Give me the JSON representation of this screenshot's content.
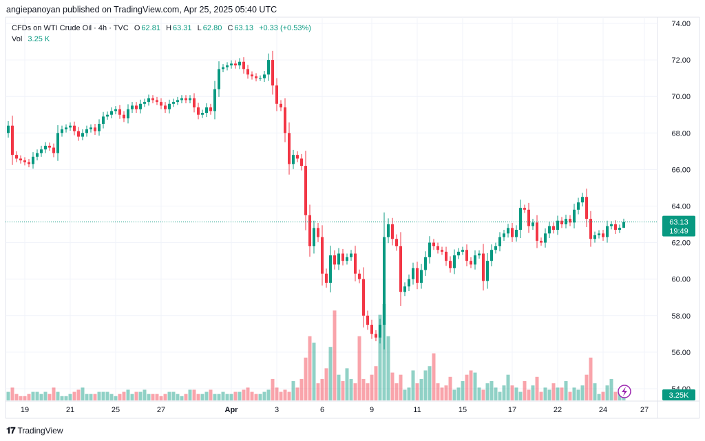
{
  "publisher_line": "angiepanoyan published on TradingView.com, Apr 25, 2025 05:40 UTC",
  "legend": {
    "symbol": "CFDs on WTI Crude Oil · 4h · TVC",
    "open_label": "O",
    "open": "62.81",
    "high_label": "H",
    "high": "63.31",
    "low_label": "L",
    "low": "62.80",
    "close_label": "C",
    "close": "63.13",
    "change": "+0.33 (+0.53%)",
    "vol_label": "Vol",
    "vol": "3.25 K"
  },
  "price_tag": {
    "price": "63.13",
    "countdown": "19:49"
  },
  "volume_tag": "3.25K",
  "logo_text": "TradingView",
  "colors": {
    "up": "#089981",
    "down": "#f23645",
    "grid": "#f0f3fa",
    "tag": "#089981",
    "lightning": "#9c27b0"
  },
  "chart_data": {
    "type": "candlestick",
    "title": "CFDs on WTI Crude Oil · 4h · TVC",
    "ylim": [
      54,
      74
    ],
    "y_ticks": [
      "74.00",
      "72.00",
      "70.00",
      "68.00",
      "66.00",
      "64.00",
      "62.00",
      "60.00",
      "58.00",
      "56.00",
      "54.00"
    ],
    "x_ticks": [
      {
        "label": "19",
        "index": 4
      },
      {
        "label": "21",
        "index": 15
      },
      {
        "label": "25",
        "index": 26
      },
      {
        "label": "27",
        "index": 37
      },
      {
        "label": "Apr",
        "index": 54,
        "bold": true
      },
      {
        "label": "3",
        "index": 65
      },
      {
        "label": "6",
        "index": 76
      },
      {
        "label": "9",
        "index": 88
      },
      {
        "label": "11",
        "index": 99
      },
      {
        "label": "15",
        "index": 110
      },
      {
        "label": "17",
        "index": 122
      },
      {
        "label": "22",
        "index": 133
      },
      {
        "label": "24",
        "index": 144
      },
      {
        "label": "27",
        "index": 154
      }
    ],
    "closes": [
      68.4,
      66.8,
      66.6,
      66.5,
      66.4,
      66.3,
      66.7,
      66.9,
      67.1,
      67.3,
      67.2,
      66.9,
      68.0,
      68.2,
      68.3,
      68.4,
      68.1,
      67.8,
      68.0,
      68.2,
      68.3,
      68.1,
      68.5,
      68.9,
      69.0,
      69.2,
      69.3,
      69.0,
      68.8,
      69.3,
      69.5,
      69.3,
      69.6,
      69.7,
      69.9,
      69.8,
      69.7,
      69.5,
      69.3,
      69.6,
      69.7,
      69.8,
      69.9,
      69.8,
      69.9,
      69.4,
      69.0,
      69.1,
      69.4,
      69.2,
      70.4,
      71.5,
      71.6,
      71.7,
      71.8,
      71.7,
      71.9,
      71.5,
      71.2,
      71.1,
      71.0,
      71.0,
      71.2,
      72.0,
      70.6,
      69.6,
      69.4,
      68.0,
      66.3,
      66.8,
      66.6,
      66.2,
      63.5,
      61.8,
      62.8,
      62.3,
      60.3,
      59.8,
      61.3,
      60.8,
      61.4,
      61.0,
      61.2,
      61.4,
      60.3,
      60.0,
      58.0,
      57.5,
      57.0,
      56.8,
      57.5,
      62.3,
      63.0,
      62.2,
      61.8,
      59.3,
      59.6,
      60.0,
      60.6,
      59.8,
      60.5,
      61.2,
      62.0,
      61.8,
      61.6,
      61.5,
      61.0,
      60.6,
      61.3,
      61.5,
      61.6,
      61.0,
      60.8,
      61.3,
      61.4,
      59.9,
      61.0,
      61.6,
      61.8,
      62.3,
      62.5,
      62.8,
      62.3,
      62.7,
      63.9,
      63.8,
      62.9,
      63.1,
      62.1,
      62.0,
      62.5,
      62.9,
      62.7,
      63.2,
      63.0,
      63.3,
      63.1,
      63.8,
      64.2,
      64.5,
      63.3,
      62.2,
      62.4,
      62.5,
      62.3,
      62.9,
      63.0,
      62.7,
      62.81,
      63.13
    ],
    "last_candle": {
      "open": 62.81,
      "high": 63.31,
      "low": 62.8,
      "close": 63.13
    },
    "volumes_k": [
      4,
      6,
      3,
      2,
      2,
      3,
      4,
      4,
      3,
      4,
      3,
      6,
      4,
      2,
      2,
      3,
      4,
      5,
      6,
      3,
      3,
      3,
      4,
      4,
      4,
      3,
      2,
      3,
      4,
      5,
      3,
      4,
      4,
      5,
      3,
      3,
      3,
      2,
      3,
      4,
      4,
      3,
      2,
      3,
      5,
      5,
      3,
      3,
      4,
      5,
      3,
      3,
      4,
      3,
      3,
      4,
      4,
      5,
      6,
      4,
      3,
      3,
      4,
      5,
      10,
      6,
      4,
      5,
      4,
      9,
      6,
      10,
      20,
      30,
      27,
      8,
      10,
      15,
      25,
      42,
      12,
      9,
      15,
      10,
      8,
      30,
      10,
      8,
      12,
      16,
      40,
      45,
      30,
      13,
      8,
      12,
      5,
      6,
      14,
      8,
      10,
      14,
      16,
      22,
      8,
      6,
      7,
      11,
      5,
      6,
      9,
      12,
      14,
      13,
      6,
      5,
      8,
      9,
      6,
      4,
      7,
      12,
      7,
      6,
      4,
      9,
      5,
      7,
      11,
      4,
      6,
      5,
      8,
      6,
      6,
      9,
      4,
      6,
      5,
      7,
      12,
      20,
      8,
      3,
      4,
      7,
      10,
      4,
      5,
      3.25
    ],
    "current_price": 63.13
  }
}
